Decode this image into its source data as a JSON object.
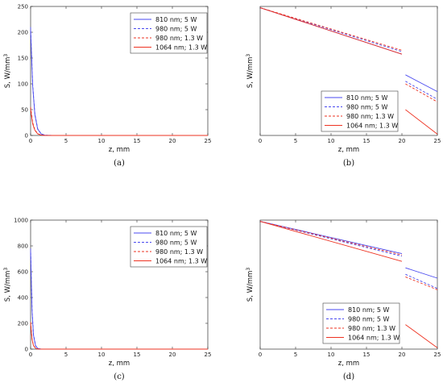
{
  "chart_data": [
    {
      "type": "line",
      "caption": "(a)",
      "xlabel": "z, mm",
      "ylabel": "S, W/mm",
      "ylabel_sup": "3",
      "xlim": [
        0,
        25
      ],
      "ylim": [
        0,
        250
      ],
      "xticks": [
        "0",
        "5",
        "10",
        "15",
        "20",
        "25"
      ],
      "yticks": [
        "0",
        "50",
        "100",
        "150",
        "200",
        "250"
      ],
      "legend_position": "top-right",
      "series": [
        {
          "name": "810 nm; 5 W",
          "color": "#4a4af0",
          "dash": "solid",
          "segments": [
            [
              [
                0,
                205
              ],
              [
                0.3,
                95
              ],
              [
                0.6,
                40
              ],
              [
                1.0,
                12
              ],
              [
                1.5,
                3
              ],
              [
                2,
                0.5
              ],
              [
                3,
                0
              ],
              [
                25,
                0
              ]
            ]
          ]
        },
        {
          "name": "980 nm; 5 W",
          "color": "#4a4af0",
          "dash": "dashed",
          "segments": [
            [
              [
                0,
                210
              ],
              [
                0.3,
                98
              ],
              [
                0.6,
                42
              ],
              [
                1.0,
                13
              ],
              [
                1.5,
                3
              ],
              [
                2,
                0.6
              ],
              [
                3,
                0
              ],
              [
                25,
                0
              ]
            ]
          ]
        },
        {
          "name": "980 nm; 1.3 W",
          "color": "#ee3322",
          "dash": "dashed",
          "segments": [
            [
              [
                0,
                55
              ],
              [
                0.3,
                25
              ],
              [
                0.6,
                11
              ],
              [
                1.0,
                3.5
              ],
              [
                1.5,
                1
              ],
              [
                2,
                0
              ],
              [
                25,
                0
              ]
            ]
          ]
        },
        {
          "name": "1064 nm; 1.3 W",
          "color": "#ee3322",
          "dash": "solid",
          "segments": [
            [
              [
                0,
                50
              ],
              [
                0.3,
                22
              ],
              [
                0.6,
                10
              ],
              [
                1.0,
                3
              ],
              [
                1.5,
                0.8
              ],
              [
                2,
                0
              ],
              [
                25,
                0
              ]
            ]
          ]
        }
      ]
    },
    {
      "type": "line",
      "caption": "(b)",
      "xlabel": "z, mm",
      "ylabel": "S, W/mm",
      "ylabel_sup": "3",
      "log_scale_y": true,
      "xlim": [
        0,
        25
      ],
      "ylim": [
        0,
        1
      ],
      "xticks": [
        "0",
        "5",
        "10",
        "15",
        "20",
        "25"
      ],
      "yticks": [],
      "legend_position": "bottom-right",
      "series": [
        {
          "name": "810 nm; 5 W",
          "color": "#4a4af0",
          "dash": "solid",
          "segments": [
            [
              [
                0,
                0.99
              ],
              [
                20,
                0.63
              ]
            ],
            [
              [
                20.5,
                0.47
              ],
              [
                25,
                0.34
              ]
            ]
          ]
        },
        {
          "name": "980 nm; 5 W",
          "color": "#4a4af0",
          "dash": "dashed",
          "segments": [
            [
              [
                0,
                0.99
              ],
              [
                20,
                0.65
              ]
            ],
            [
              [
                20.5,
                0.42
              ],
              [
                25,
                0.28
              ]
            ]
          ]
        },
        {
          "name": "980 nm; 1.3 W",
          "color": "#ee3322",
          "dash": "dashed",
          "segments": [
            [
              [
                0,
                0.99
              ],
              [
                20,
                0.66
              ]
            ],
            [
              [
                20.5,
                0.4
              ],
              [
                25,
                0.26
              ]
            ]
          ]
        },
        {
          "name": "1064 nm; 1.3 W",
          "color": "#ee3322",
          "dash": "solid",
          "segments": [
            [
              [
                0,
                0.99
              ],
              [
                20,
                0.63
              ]
            ],
            [
              [
                20.5,
                0.2
              ],
              [
                25,
                0.01
              ]
            ]
          ]
        }
      ]
    },
    {
      "type": "line",
      "caption": "(c)",
      "xlabel": "z, mm",
      "ylabel": "S, W/mm",
      "ylabel_sup": "3",
      "xlim": [
        0,
        25
      ],
      "ylim": [
        0,
        1000
      ],
      "xticks": [
        "0",
        "5",
        "10",
        "15",
        "20",
        "25"
      ],
      "yticks": [
        "0",
        "200",
        "400",
        "600",
        "800",
        "1000"
      ],
      "legend_position": "top-right",
      "series": [
        {
          "name": "810 nm; 5 W",
          "color": "#4a4af0",
          "dash": "solid",
          "segments": [
            [
              [
                0,
                760
              ],
              [
                0.2,
                300
              ],
              [
                0.4,
                110
              ],
              [
                0.7,
                25
              ],
              [
                1.0,
                5
              ],
              [
                1.5,
                0
              ],
              [
                25,
                0
              ]
            ]
          ]
        },
        {
          "name": "980 nm; 5 W",
          "color": "#4a4af0",
          "dash": "dashed",
          "segments": [
            [
              [
                0,
                780
              ],
              [
                0.2,
                310
              ],
              [
                0.4,
                115
              ],
              [
                0.7,
                26
              ],
              [
                1.0,
                5
              ],
              [
                1.5,
                0
              ],
              [
                25,
                0
              ]
            ]
          ]
        },
        {
          "name": "980 nm; 1.3 W",
          "color": "#ee3322",
          "dash": "dashed",
          "segments": [
            [
              [
                0,
                210
              ],
              [
                0.2,
                80
              ],
              [
                0.4,
                30
              ],
              [
                0.7,
                7
              ],
              [
                1.0,
                1
              ],
              [
                1.5,
                0
              ],
              [
                25,
                0
              ]
            ]
          ]
        },
        {
          "name": "1064 nm; 1.3 W",
          "color": "#ee3322",
          "dash": "solid",
          "segments": [
            [
              [
                0,
                200
              ],
              [
                0.2,
                75
              ],
              [
                0.4,
                28
              ],
              [
                0.7,
                6
              ],
              [
                1.0,
                1
              ],
              [
                1.5,
                0
              ],
              [
                25,
                0
              ]
            ]
          ]
        }
      ]
    },
    {
      "type": "line",
      "caption": "(d)",
      "xlabel": "z, mm",
      "ylabel": "S, W/mm",
      "ylabel_sup": "3",
      "log_scale_y": true,
      "xlim": [
        0,
        25
      ],
      "ylim": [
        0,
        1
      ],
      "xticks": [
        "0",
        "5",
        "10",
        "15",
        "20",
        "25"
      ],
      "yticks": [],
      "legend_position": "bottom-right",
      "series": [
        {
          "name": "810 nm; 5 W",
          "color": "#4a4af0",
          "dash": "solid",
          "segments": [
            [
              [
                0,
                0.99
              ],
              [
                20,
                0.74
              ]
            ],
            [
              [
                20.5,
                0.63
              ],
              [
                25,
                0.55
              ]
            ]
          ]
        },
        {
          "name": "980 nm; 5 W",
          "color": "#4a4af0",
          "dash": "dashed",
          "segments": [
            [
              [
                0,
                0.99
              ],
              [
                20,
                0.72
              ]
            ],
            [
              [
                20.5,
                0.58
              ],
              [
                25,
                0.47
              ]
            ]
          ]
        },
        {
          "name": "980 nm; 1.3 W",
          "color": "#ee3322",
          "dash": "dashed",
          "segments": [
            [
              [
                0,
                0.99
              ],
              [
                20,
                0.73
              ]
            ],
            [
              [
                20.5,
                0.56
              ],
              [
                25,
                0.46
              ]
            ]
          ]
        },
        {
          "name": "1064 nm; 1.3 W",
          "color": "#ee3322",
          "dash": "solid",
          "segments": [
            [
              [
                0,
                0.99
              ],
              [
                20,
                0.68
              ]
            ],
            [
              [
                20.5,
                0.19
              ],
              [
                25,
                0.01
              ]
            ]
          ]
        }
      ]
    }
  ]
}
